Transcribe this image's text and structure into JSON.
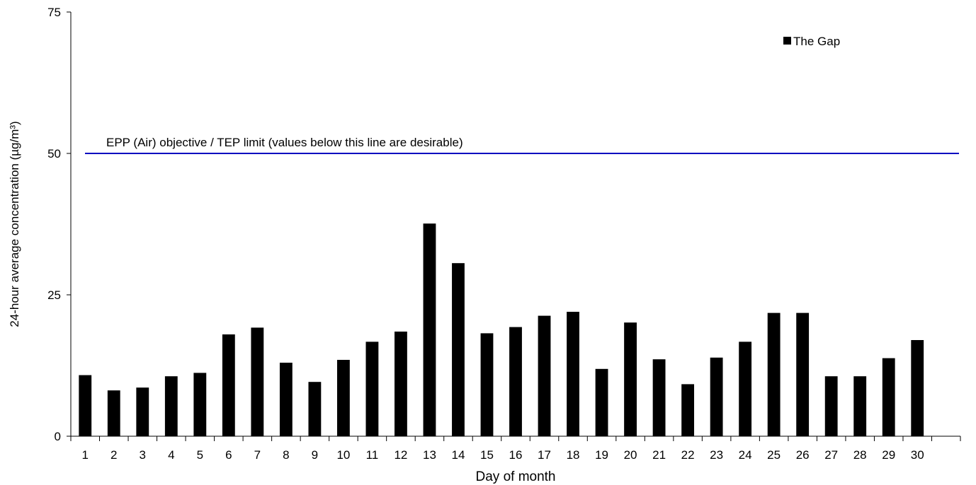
{
  "chart_data": {
    "type": "bar",
    "title": "",
    "xlabel": "Day of month",
    "ylabel": "24-hour average concentration (µg/m³)",
    "ylim": [
      0,
      75
    ],
    "yticks": [
      0,
      25,
      50,
      75
    ],
    "grid": false,
    "legend_position": "top-right",
    "categories": [
      "1",
      "2",
      "3",
      "4",
      "5",
      "6",
      "7",
      "8",
      "9",
      "10",
      "11",
      "12",
      "13",
      "14",
      "15",
      "16",
      "17",
      "18",
      "19",
      "20",
      "21",
      "22",
      "23",
      "24",
      "25",
      "26",
      "27",
      "28",
      "29",
      "30"
    ],
    "series": [
      {
        "name": "The Gap",
        "color": "#000000",
        "values": [
          10.8,
          8.1,
          8.6,
          10.6,
          11.2,
          18.0,
          19.2,
          13.0,
          9.6,
          13.5,
          16.7,
          18.5,
          37.6,
          30.6,
          18.2,
          19.3,
          21.3,
          22.0,
          11.9,
          20.1,
          13.6,
          9.2,
          13.9,
          16.7,
          21.8,
          21.8,
          10.6,
          10.6,
          13.8,
          17.0
        ]
      }
    ],
    "reference_line": {
      "value": 50,
      "label": "EPP (Air) objective / TEP limit (values below this line are desirable)",
      "color": "#0000c0"
    }
  }
}
